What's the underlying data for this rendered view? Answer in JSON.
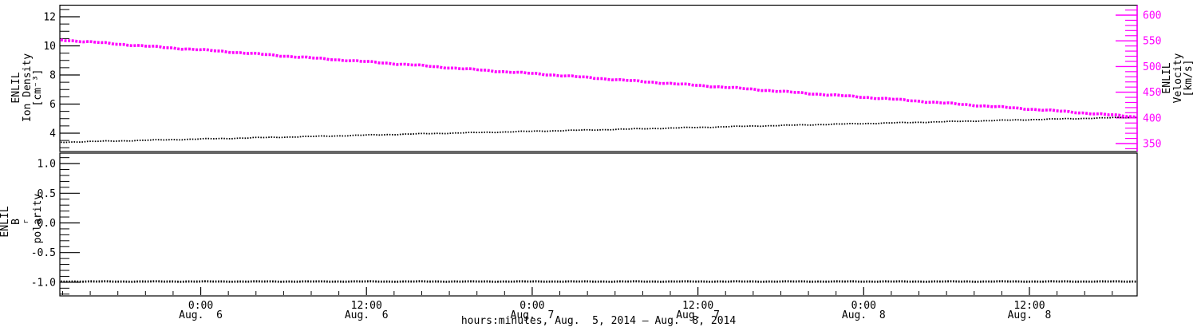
{
  "figure": {
    "background_color": "#ffffff",
    "frame_color": "#000000",
    "accent_color": "#ff00ff"
  },
  "top_panel": {
    "left_axis": {
      "label_lines": [
        "ENLIL",
        "Ion Density",
        "[cm⁻³]"
      ],
      "tick_values": [
        4,
        6,
        8,
        10,
        12
      ],
      "minor_tick_step": 0.5,
      "color": "#000000"
    },
    "right_axis": {
      "label_lines": [
        "ENLIL",
        "Velocity",
        "[km/s]"
      ],
      "tick_values": [
        350,
        400,
        450,
        500,
        550,
        600
      ],
      "minor_tick_step": 10,
      "color": "#ff00ff"
    }
  },
  "bottom_panel": {
    "left_axis": {
      "label_line1": "ENLIL",
      "label_line2_base": "B",
      "label_line2_sub": "r",
      "label_line2_rest": " polarity",
      "tick_values": [
        -1.0,
        -0.5,
        0.0,
        0.5,
        1.0
      ],
      "minor_tick_step": 0.1,
      "color": "#000000"
    }
  },
  "x_axis": {
    "title": "hours:minutes, Aug.  5, 2014 — Aug.  8, 2014",
    "minor_tick_hours": 2,
    "major_tick_hours": 12,
    "major_ticks": [
      {
        "time": "0:00",
        "date": "Aug.  6"
      },
      {
        "time": "12:00",
        "date": "Aug.  6"
      },
      {
        "time": "0:00",
        "date": "Aug.  7"
      },
      {
        "time": "12:00",
        "date": "Aug.  7"
      },
      {
        "time": "0:00",
        "date": "Aug.  8"
      },
      {
        "time": "12:00",
        "date": "Aug.  8"
      }
    ]
  },
  "chart_data": [
    {
      "type": "line",
      "panel": "top",
      "title": "",
      "xlabel": "hours:minutes, Aug.  5, 2014 — Aug.  8, 2014",
      "x_hours": [
        0,
        6,
        12,
        18,
        24,
        30,
        36,
        42,
        48,
        54,
        60,
        66,
        72,
        78
      ],
      "x_span_note": "axis spans ~Aug 5 14:00 to ~Aug 8 20:00; major ticks every 12 h",
      "series": [
        {
          "name": "ENLIL Ion Density",
          "units": "cm⁻³",
          "axis": "left",
          "color": "#000000",
          "style": "dotted",
          "values": [
            3.38,
            3.51,
            3.64,
            3.77,
            3.91,
            4.04,
            4.17,
            4.3,
            4.44,
            4.57,
            4.7,
            4.83,
            4.97,
            5.1
          ]
        },
        {
          "name": "ENLIL Velocity",
          "units": "km/s",
          "axis": "right",
          "color": "#ff00ff",
          "style": "plus-markers",
          "values": [
            552,
            540,
            529,
            517,
            506,
            494,
            483,
            471,
            460,
            448,
            437,
            425,
            414,
            402
          ]
        }
      ],
      "left_ylim": [
        2.8,
        12.8
      ],
      "right_ylim": [
        334,
        620
      ],
      "grid": false,
      "legend": "none"
    },
    {
      "type": "line",
      "panel": "bottom",
      "title": "",
      "x_hours": [
        0,
        78
      ],
      "series": [
        {
          "name": "ENLIL Br polarity",
          "axis": "left",
          "color": "#000000",
          "style": "dotted",
          "values": [
            -1.0,
            -1.0
          ]
        }
      ],
      "ylim": [
        -1.22,
        1.18
      ],
      "grid": false,
      "legend": "none"
    }
  ]
}
